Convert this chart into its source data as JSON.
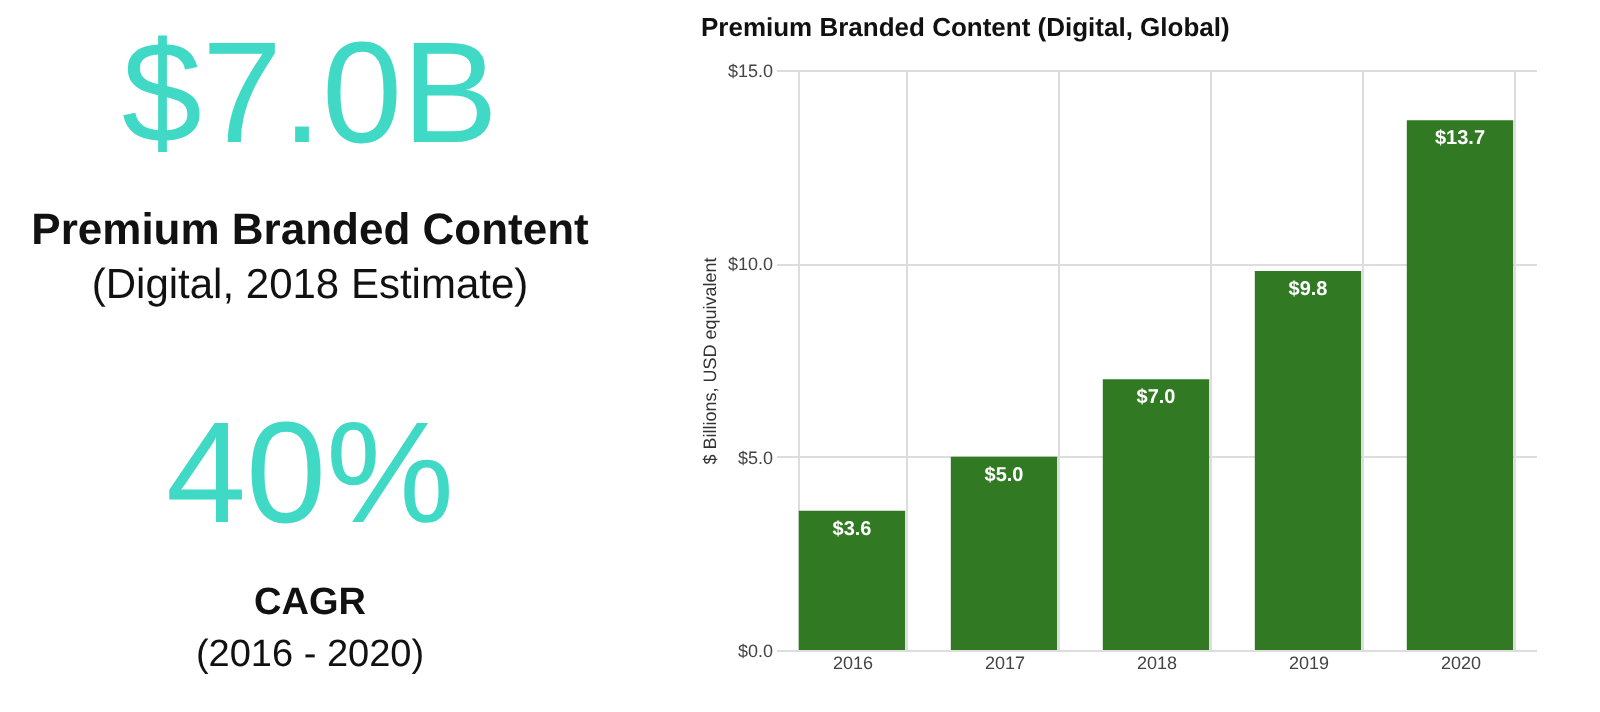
{
  "chart_data": [
    {
      "type": "other",
      "annotations": [
        "$7.0B",
        "Premium Branded Content",
        "(Digital, 2018 Estimate)",
        "40%",
        "CAGR",
        "(2016 - 2020)"
      ],
      "color": "#3fd9c5"
    },
    {
      "type": "bar",
      "title": "Premium Branded Content (Digital, Global)",
      "ylabel": "$ Billions, USD equivalent",
      "categories": [
        "2016",
        "2017",
        "2018",
        "2019",
        "2020"
      ],
      "values": [
        3.6,
        5.0,
        7.0,
        9.8,
        13.7
      ],
      "value_labels": [
        "$3.6",
        "$5.0",
        "$7.0",
        "$9.8",
        "$13.7"
      ],
      "color": "#317a23",
      "ylim": [
        0,
        15
      ],
      "yticks": [
        {
          "value": 0,
          "label": "$0.0"
        },
        {
          "value": 5,
          "label": "$5.0"
        },
        {
          "value": 10,
          "label": "$10.0"
        },
        {
          "value": 15,
          "label": "$15.0"
        }
      ],
      "grid": true
    }
  ]
}
